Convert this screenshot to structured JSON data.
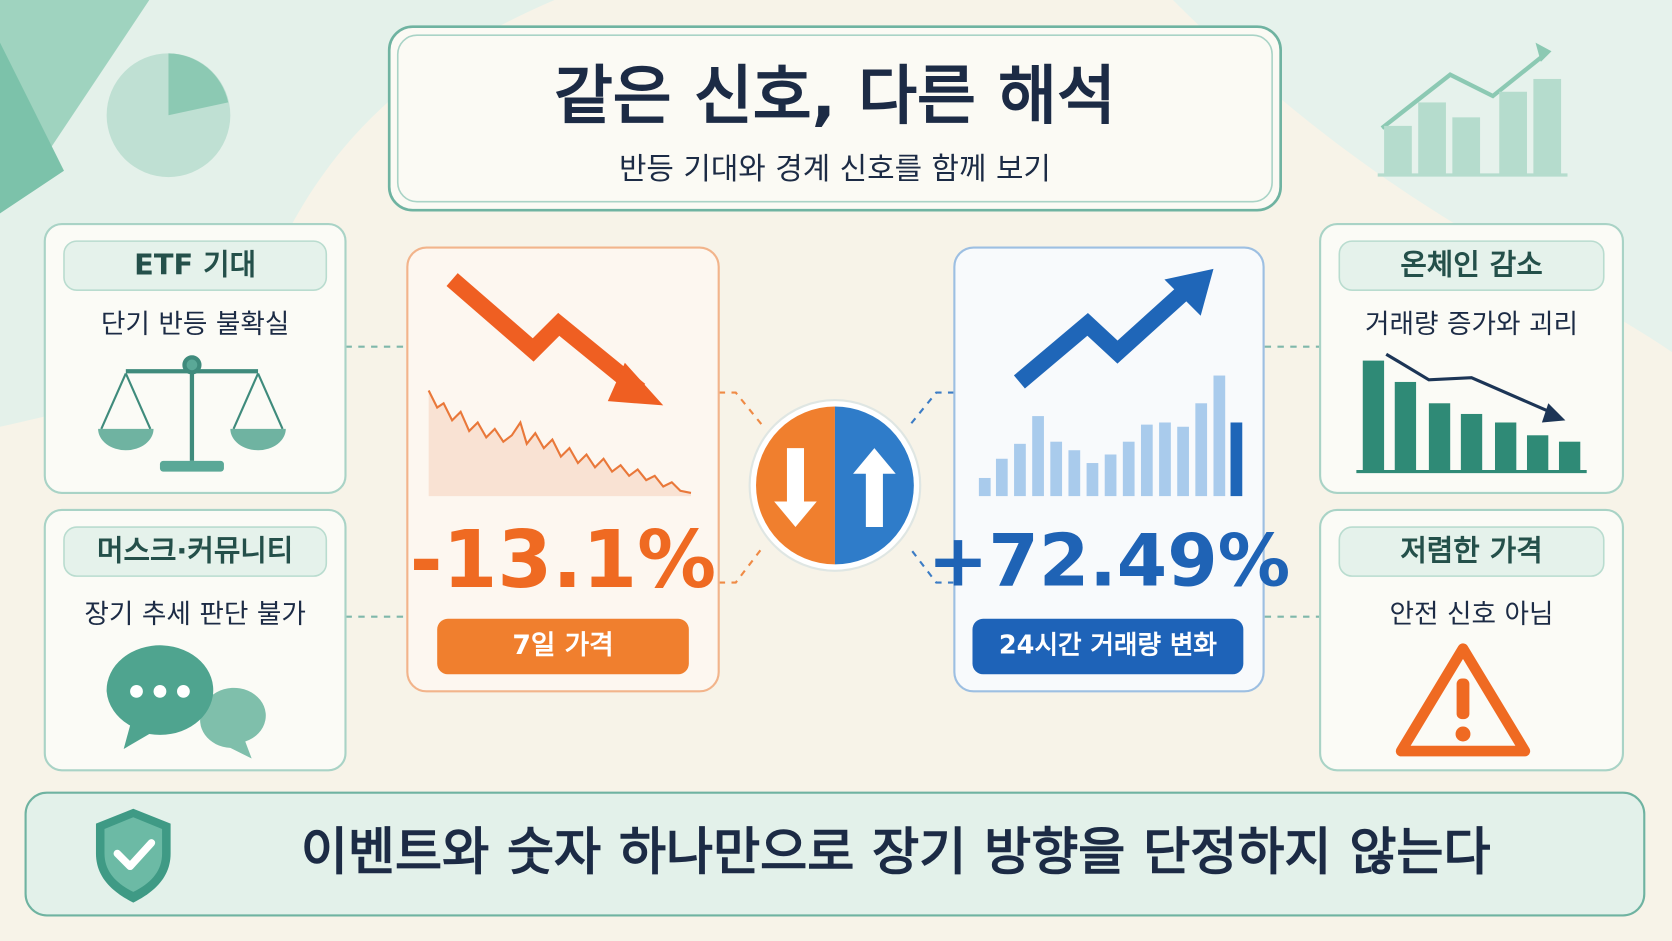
{
  "header": {
    "title": "같은 신호, 다른 해석",
    "subtitle": "반등 기대와 경계 신호를 함께 보기"
  },
  "left_cards": [
    {
      "label": "ETF 기대",
      "text": "단기 반등 불확실"
    },
    {
      "label": "머스크·커뮤니티",
      "text": "장기 추세 판단 불가"
    }
  ],
  "center": {
    "price": {
      "value": "-13.1%",
      "label": "7일 가격"
    },
    "volume": {
      "value": "+72.49%",
      "label": "24시간 거래량 변화"
    }
  },
  "right_cards": [
    {
      "label": "온체인 감소",
      "text": "거래량 증가와 괴리"
    },
    {
      "label": "저렴한 가격",
      "text": "안전 신호 아님"
    }
  ],
  "footer": {
    "text": "이벤트와 숫자 하나만으로 장기 방향을 단정하지 않는다"
  }
}
